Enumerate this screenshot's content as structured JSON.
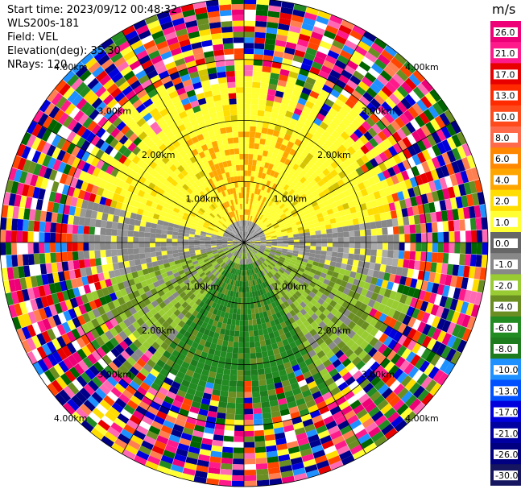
{
  "header": {
    "start_time": "Start time: 2023/09/12 00:48:32",
    "instrument": "WLS200s-181",
    "field": "Field: VEL",
    "elevation": "Elevation(deg): 35.30",
    "nrays": "NRays: 120"
  },
  "chart_data": {
    "type": "heatmap",
    "projection": "polar-ppi",
    "n_rays": 120,
    "range_unit": "km",
    "max_range_km": 4.0,
    "range_ring_labels": [
      "1.00km",
      "2.00km",
      "3.00km",
      "4.00km"
    ],
    "spoke_angles_deg": [
      0,
      30,
      60,
      90,
      120,
      150,
      180,
      210,
      240,
      270,
      300,
      330
    ],
    "colorbar": {
      "unit": "m/s",
      "ticks": [
        "26.0",
        "21.0",
        "17.0",
        "13.0",
        "10.0",
        "8.0",
        "6.0",
        "4.0",
        "2.0",
        "1.0",
        "0.0",
        "-1.0",
        "-2.0",
        "-4.0",
        "-6.0",
        "-8.0",
        "-10.0",
        "-13.0",
        "-17.0",
        "-21.0",
        "-26.0",
        "-30.0"
      ],
      "colors": [
        "#ee0077",
        "#ff1a8c",
        "#e80000",
        "#ff2a00",
        "#ff4a1c",
        "#ff6a4a",
        "#ff8800",
        "#ffa500",
        "#ffdd00",
        "#ffff33",
        "#666666",
        "#888888",
        "#99cc33",
        "#6b8e23",
        "#228b22",
        "#1e7b1e",
        "#1e90ff",
        "#0050ff",
        "#0000dd",
        "#0000a0",
        "#000080",
        "#151560"
      ]
    },
    "field_pattern": {
      "inner_clean_range_km": 2.6,
      "noise_palette": [
        "#ee0077",
        "#ff1a8c",
        "#ff69b4",
        "#e80000",
        "#ff4500",
        "#ffdd00",
        "#ffff33",
        "#1e90ff",
        "#0000dd",
        "#000080",
        "#006400",
        "#228b22",
        "#6b8e23",
        "#ffffff",
        "#ff7f50",
        "#00008b"
      ]
    }
  }
}
